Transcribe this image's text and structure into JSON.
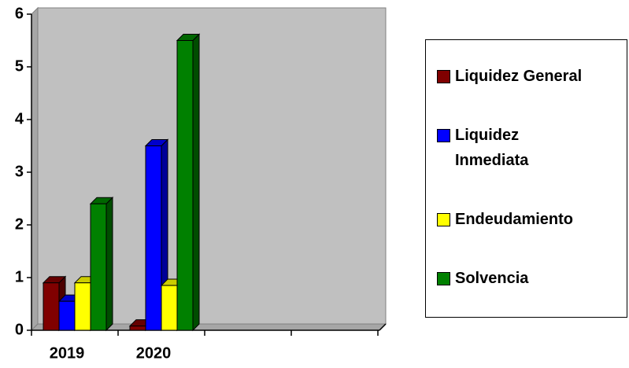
{
  "chart_data": {
    "type": "bar3d",
    "categories": [
      "2019",
      "2020",
      null,
      null
    ],
    "series": [
      {
        "name": "Liquidez General",
        "color": "#800000",
        "values": [
          0.9,
          0.08,
          null,
          null
        ]
      },
      {
        "name": "Liquidez Inmediata",
        "color": "#0000ff",
        "values": [
          0.55,
          3.5,
          null,
          null
        ]
      },
      {
        "name": "Endeudamiento",
        "color": "#ffff00",
        "values": [
          0.9,
          0.85,
          null,
          null
        ]
      },
      {
        "name": "Solvencia",
        "color": "#008000",
        "values": [
          2.4,
          5.5,
          null,
          null
        ]
      }
    ],
    "ylim": [
      0,
      6
    ],
    "yticks": [
      0,
      1,
      2,
      3,
      4,
      5,
      6
    ],
    "legend": "right"
  }
}
